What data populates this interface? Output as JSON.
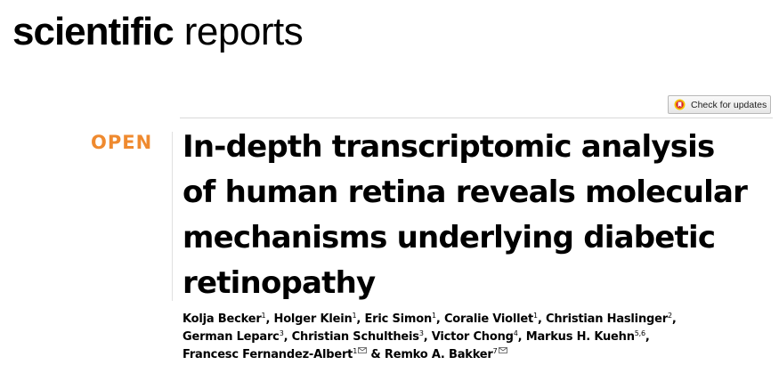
{
  "header": {
    "brand_bold": "scientific",
    "brand_light": "reports"
  },
  "updates_button": {
    "label": "Check for updates",
    "icon": "crossmark-icon"
  },
  "article": {
    "access_label": "OPEN",
    "title_lines": [
      "In-depth transcriptomic analysis",
      "of human retina reveals molecular",
      "mechanisms underlying diabetic",
      "retinopathy"
    ],
    "authors": [
      {
        "name": "Kolja Becker",
        "aff": "1",
        "sep": ", "
      },
      {
        "name": "Holger Klein",
        "aff": "1",
        "sep": ", "
      },
      {
        "name": "Eric Simon",
        "aff": "1",
        "sep": ", "
      },
      {
        "name": "Coralie Viollet",
        "aff": "1",
        "sep": ", "
      },
      {
        "name": "Christian Haslinger",
        "aff": "2",
        "sep": ","
      },
      {
        "name": "German Leparc",
        "aff": "3",
        "sep": ", "
      },
      {
        "name": "Christian Schultheis",
        "aff": "3",
        "sep": ", "
      },
      {
        "name": "Victor Chong",
        "aff": "4",
        "sep": ", "
      },
      {
        "name": "Markus H. Kuehn",
        "aff": "5,6",
        "sep": ","
      },
      {
        "name": "Francesc Fernandez-Albert",
        "aff": "1",
        "sep": " & "
      },
      {
        "name": "Remko A. Bakker",
        "aff": "7",
        "sep": ""
      }
    ],
    "corresponding_icon": "envelope-icon",
    "colors": {
      "open": "#ef8a2f"
    }
  }
}
